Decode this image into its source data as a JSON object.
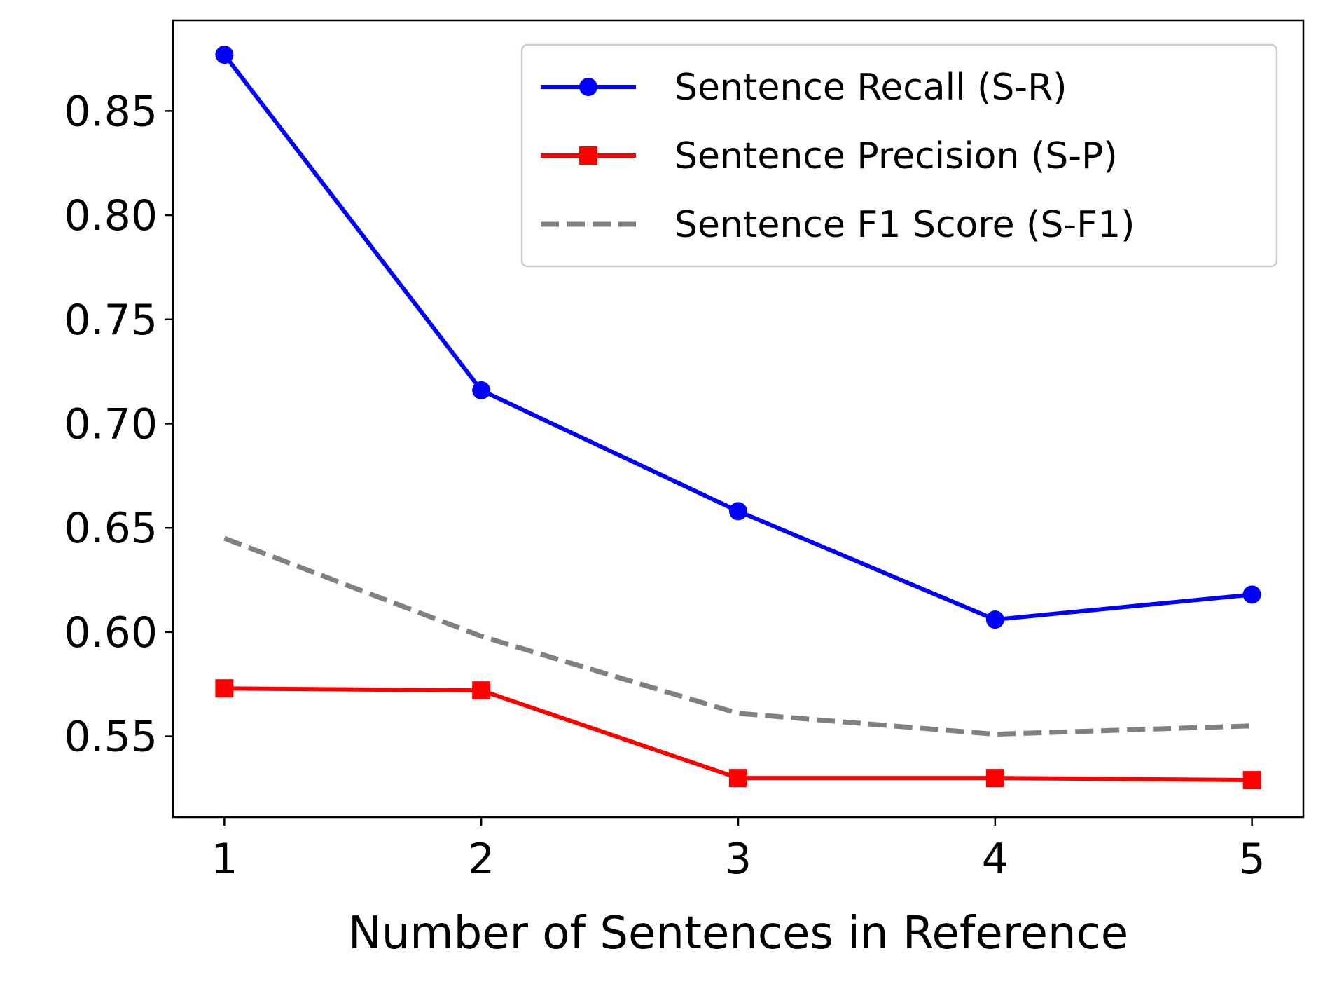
{
  "chart_data": {
    "type": "line",
    "title": "",
    "xlabel": "Number of Sentences in Reference",
    "ylabel": "",
    "x": [
      1,
      2,
      3,
      4,
      5
    ],
    "x_ticks": [
      "1",
      "2",
      "3",
      "4",
      "5"
    ],
    "xlim": [
      0.8,
      5.2
    ],
    "ylim": [
      0.5112,
      0.8935
    ],
    "y_ticks": [
      "0.55",
      "0.60",
      "0.65",
      "0.70",
      "0.75",
      "0.80",
      "0.85"
    ],
    "grid": false,
    "legend_position": "top-right",
    "series": [
      {
        "name": "Sentence Recall (S-R)",
        "values": [
          0.877,
          0.716,
          0.658,
          0.606,
          0.618
        ],
        "color": "#0000ff",
        "marker": "circle",
        "style": "solid"
      },
      {
        "name": "Sentence Precision (S-P)",
        "values": [
          0.573,
          0.572,
          0.53,
          0.53,
          0.529
        ],
        "color": "#ff0000",
        "marker": "square",
        "style": "solid"
      },
      {
        "name": "Sentence F1 Score (S-F1)",
        "values": [
          0.645,
          0.598,
          0.561,
          0.551,
          0.555
        ],
        "color": "#808080",
        "marker": "none",
        "style": "dashed"
      }
    ]
  }
}
